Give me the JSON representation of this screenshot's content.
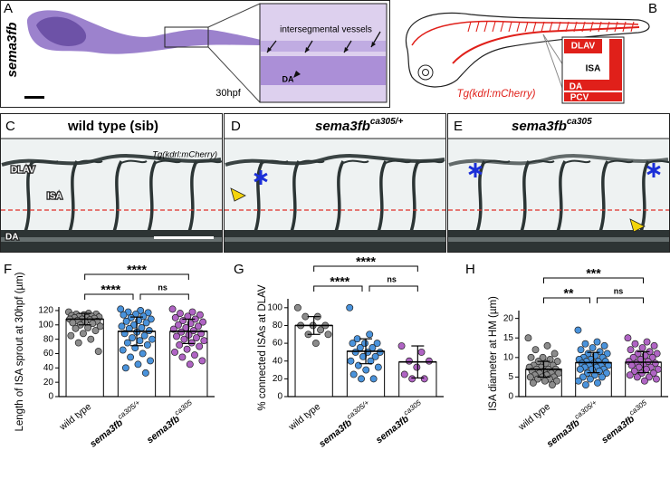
{
  "panels": {
    "A": {
      "label": "A",
      "gene": "sema3fb",
      "inset_label": "intersegmental vessels",
      "vessel_label": "DA",
      "stage": "30hpf"
    },
    "B": {
      "label": "B",
      "labels": [
        "DLAV",
        "ISA",
        "DA",
        "PCV"
      ],
      "transgene": "Tg(kdrl:mCherry)"
    },
    "C": {
      "label": "C",
      "title": "wild type (sib)",
      "transgene": "Tg(kdrl:mCherry)",
      "labels": [
        "DLAV",
        "ISA",
        "DA"
      ]
    },
    "D": {
      "label": "D",
      "title": {
        "text": "sema3fb",
        "sup": "ca305/+"
      }
    },
    "E": {
      "label": "E",
      "title": {
        "text": "sema3fb",
        "sup": "ca305"
      }
    }
  },
  "chart_data": [
    {
      "type": "bar",
      "label": "F",
      "ylabel": "Length of ISA sprout at 30hpf (µm)",
      "categories": [
        "wild type",
        {
          "text": "sema3fb",
          "sup": "ca305/+"
        },
        {
          "text": "sema3fb",
          "sup": "ca305"
        }
      ],
      "values": [
        108,
        91,
        91
      ],
      "errors": [
        8,
        20,
        17
      ],
      "colors": [
        "#8c8c8c",
        "#4a93dc",
        "#b064c4"
      ],
      "points": [
        [
          118,
          116,
          115,
          115,
          114,
          113,
          112,
          112,
          111,
          110,
          110,
          109,
          108,
          108,
          107,
          106,
          105,
          104,
          103,
          102,
          100,
          98,
          96,
          95,
          92,
          88,
          85,
          80,
          75,
          63
        ],
        [
          122,
          120,
          118,
          117,
          115,
          114,
          112,
          110,
          108,
          106,
          105,
          103,
          100,
          98,
          96,
          95,
          92,
          90,
          88,
          85,
          82,
          80,
          78,
          75,
          72,
          68,
          65,
          60,
          55,
          50,
          45,
          40,
          33
        ],
        [
          122,
          118,
          116,
          114,
          112,
          110,
          108,
          106,
          104,
          102,
          100,
          98,
          96,
          94,
          92,
          90,
          88,
          86,
          84,
          82,
          80,
          78,
          75,
          72,
          70,
          66,
          62,
          58,
          55,
          50,
          45
        ]
      ],
      "ylim": [
        0,
        125
      ],
      "yticks": [
        0,
        20,
        40,
        60,
        80,
        100,
        120
      ],
      "comparisons": [
        {
          "from": 0,
          "to": 1,
          "label": "****"
        },
        {
          "from": 1,
          "to": 2,
          "label": "ns"
        },
        {
          "from": 0,
          "to": 2,
          "label": "****"
        }
      ]
    },
    {
      "type": "bar",
      "label": "G",
      "ylabel": "% connected ISAs at DLAV",
      "categories": [
        "wild type",
        {
          "text": "sema3fb",
          "sup": "ca305/+"
        },
        {
          "text": "sema3fb",
          "sup": "ca305"
        }
      ],
      "values": [
        80,
        51,
        39
      ],
      "errors": [
        10,
        14,
        18
      ],
      "colors": [
        "#8c8c8c",
        "#4a93dc",
        "#b064c4"
      ],
      "points": [
        [
          100,
          90,
          90,
          80,
          80,
          80,
          75,
          70,
          70,
          60
        ],
        [
          100,
          70,
          65,
          60,
          60,
          60,
          55,
          55,
          50,
          50,
          50,
          45,
          45,
          40,
          40,
          35,
          33,
          30,
          25,
          20,
          20
        ],
        [
          57,
          50,
          40,
          40,
          33,
          25,
          20,
          20
        ]
      ],
      "ylim": [
        0,
        110
      ],
      "yticks": [
        0,
        20,
        40,
        60,
        80,
        100
      ],
      "comparisons": [
        {
          "from": 0,
          "to": 1,
          "label": "****"
        },
        {
          "from": 1,
          "to": 2,
          "label": "ns"
        },
        {
          "from": 0,
          "to": 2,
          "label": "****"
        }
      ]
    },
    {
      "type": "bar",
      "label": "H",
      "ylabel": "ISA diameter at HM (µm)",
      "categories": [
        "wild type",
        {
          "text": "sema3fb",
          "sup": "ca305/+"
        },
        {
          "text": "sema3fb",
          "sup": "ca305"
        }
      ],
      "values": [
        7,
        8.7,
        8.8
      ],
      "errors": [
        2,
        2.6,
        2.7
      ],
      "colors": [
        "#8c8c8c",
        "#4a93dc",
        "#b064c4"
      ],
      "points": [
        [
          15,
          13,
          12,
          11,
          10,
          10,
          9.5,
          9,
          9,
          8.5,
          8,
          8,
          7.5,
          7.5,
          7,
          7,
          7,
          6.5,
          6.5,
          6,
          6,
          6,
          5.5,
          5.5,
          5,
          5,
          5,
          4.5,
          4.5,
          4,
          4,
          3.5,
          3
        ],
        [
          17,
          14,
          13.5,
          13,
          12.5,
          12,
          11.5,
          11,
          11,
          10.5,
          10,
          10,
          9.5,
          9.5,
          9,
          9,
          9,
          8.5,
          8.5,
          8,
          8,
          8,
          7.5,
          7.5,
          7,
          7,
          7,
          6.5,
          6,
          6,
          5.5,
          5,
          5,
          4.5,
          4,
          3.5,
          3
        ],
        [
          15,
          14,
          13.5,
          13,
          12.5,
          12,
          11.5,
          11,
          11,
          10.5,
          10,
          10,
          9.5,
          9,
          9,
          8.5,
          8.5,
          8,
          8,
          7.5,
          7.5,
          7,
          7,
          6.5,
          6,
          6,
          5.5,
          5,
          5,
          4.5,
          4
        ]
      ],
      "ylim": [
        0,
        22
      ],
      "yticks": [
        0,
        5,
        10,
        15,
        20
      ],
      "comparisons": [
        {
          "from": 0,
          "to": 1,
          "label": "**"
        },
        {
          "from": 1,
          "to": 2,
          "label": "ns"
        },
        {
          "from": 0,
          "to": 2,
          "label": "***"
        }
      ]
    }
  ]
}
